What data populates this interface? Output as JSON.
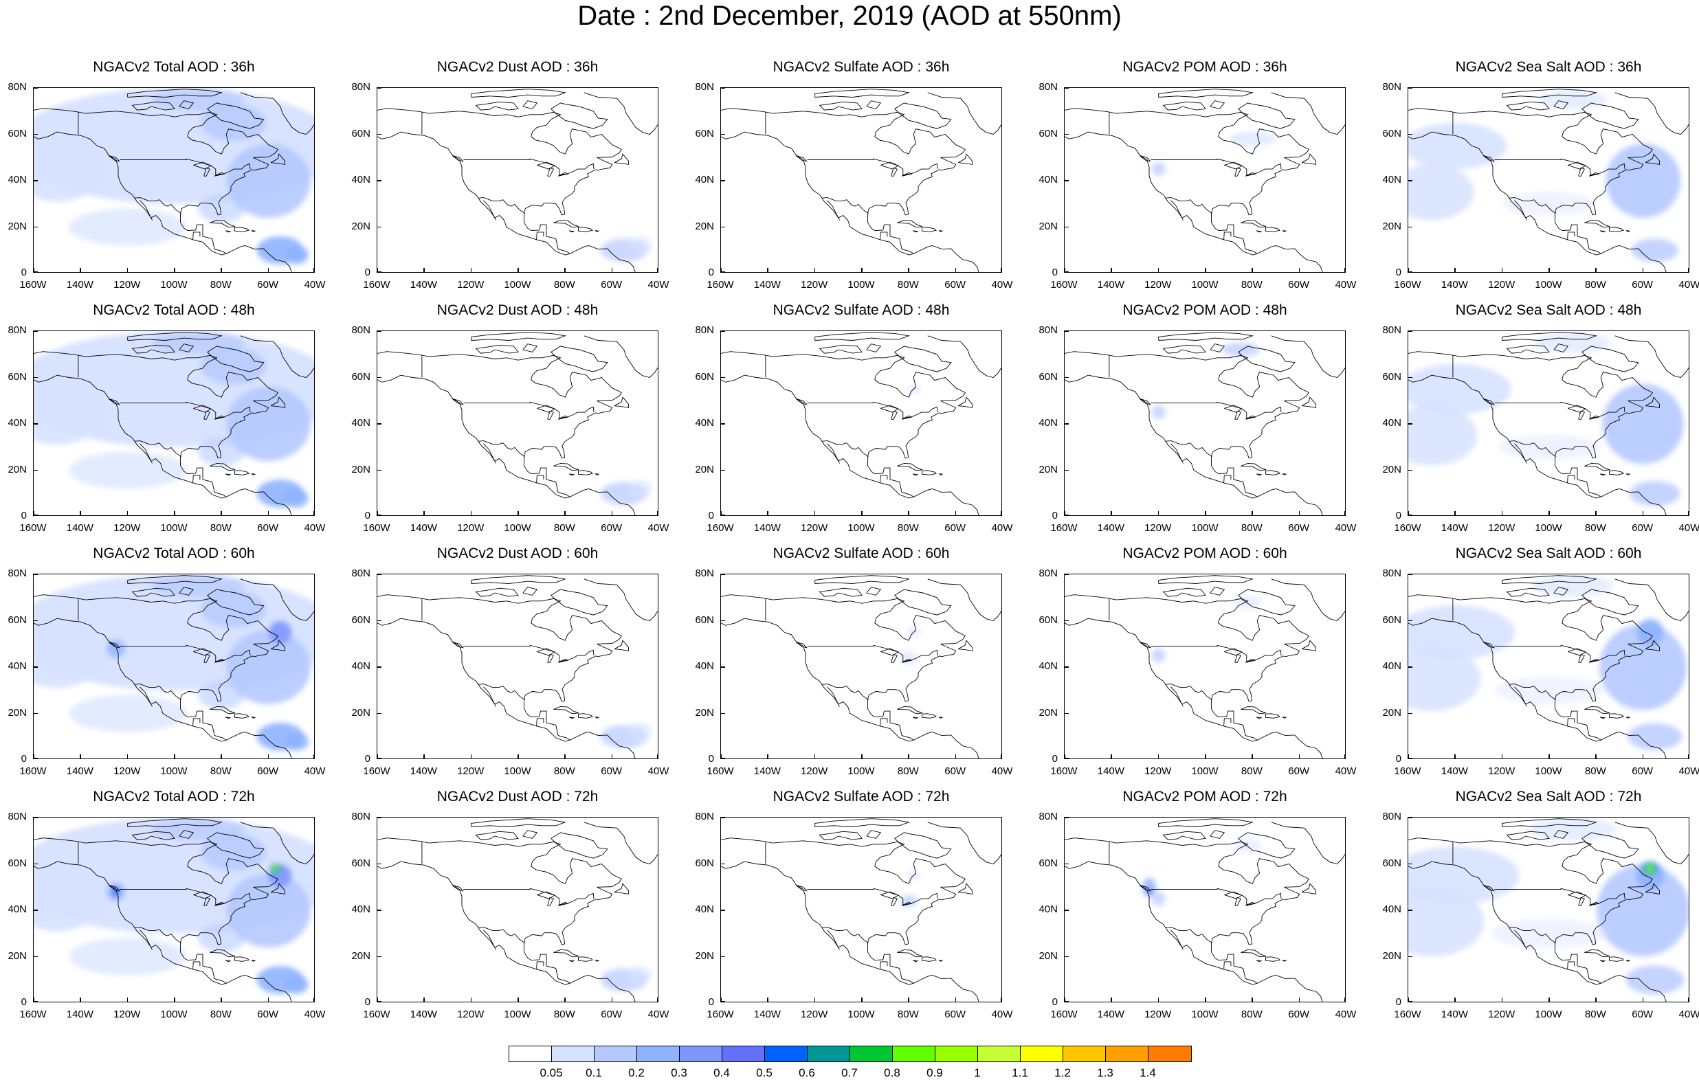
{
  "title": "Date : 2nd December, 2019 (AOD at 550nm)",
  "lat_ticks": [
    "80N",
    "60N",
    "40N",
    "20N",
    "0"
  ],
  "lon_ticks": [
    "160W",
    "140W",
    "120W",
    "100W",
    "80W",
    "60W",
    "40W"
  ],
  "rows": [
    [
      "NGACv2 Total AOD : 36h",
      "NGACv2 Dust AOD : 36h",
      "NGACv2 Sulfate AOD : 36h",
      "NGACv2 POM AOD : 36h",
      "NGACv2 Sea Salt AOD : 36h"
    ],
    [
      "NGACv2 Total AOD : 48h",
      "NGACv2 Dust AOD : 48h",
      "NGACv2 Sulfate AOD : 48h",
      "NGACv2 POM AOD : 48h",
      "NGACv2 Sea Salt AOD : 48h"
    ],
    [
      "NGACv2 Total AOD : 60h",
      "NGACv2 Dust AOD : 60h",
      "NGACv2 Sulfate AOD : 60h",
      "NGACv2 POM AOD : 60h",
      "NGACv2 Sea Salt AOD : 60h"
    ],
    [
      "NGACv2 Total AOD : 72h",
      "NGACv2 Dust AOD : 72h",
      "NGACv2 Sulfate AOD : 72h",
      "NGACv2 POM AOD : 72h",
      "NGACv2 Sea Salt  AOD : 72h"
    ]
  ],
  "panel_types": [
    "total",
    "dust",
    "sulfate",
    "pom",
    "seasalt"
  ],
  "colorbar": {
    "labels": [
      "0.05",
      "0.1",
      "0.2",
      "0.3",
      "0.4",
      "0.5",
      "0.6",
      "0.7",
      "0.8",
      "0.9",
      "1",
      "1.1",
      "1.2",
      "1.3",
      "1.4"
    ],
    "colors": [
      "#ffffff",
      "#d6e2ff",
      "#b5c9ff",
      "#8eb2ff",
      "#7f96ff",
      "#6370f8",
      "#0063ff",
      "#009696",
      "#00c633",
      "#63ff00",
      "#96ff00",
      "#c6ff33",
      "#ffff00",
      "#ffc600",
      "#ffa000",
      "#ff7c00",
      "#ff1900"
    ]
  }
}
